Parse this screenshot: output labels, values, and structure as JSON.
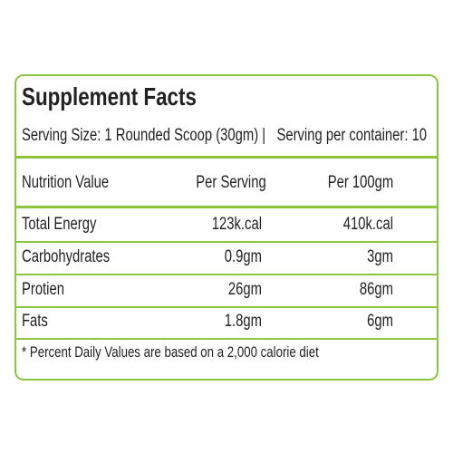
{
  "header": {
    "title": "Supplement Facts",
    "serving": "Serving Size: 1 Rounded Scoop (30gm) |   Serving per container: 10"
  },
  "table": {
    "columns": [
      "Nutrition Value",
      "Per Serving",
      "Per 100gm"
    ],
    "rows": [
      [
        "Total Energy",
        "123k.cal",
        "410k.cal"
      ],
      [
        "Carbohydrates",
        "0.9gm",
        "3gm"
      ],
      [
        "Protien",
        "26gm",
        "86gm"
      ],
      [
        "Fats",
        "1.8gm",
        "6gm"
      ]
    ]
  },
  "footnote": "* Percent Daily Values are based on a 2,000 calorie diet"
}
